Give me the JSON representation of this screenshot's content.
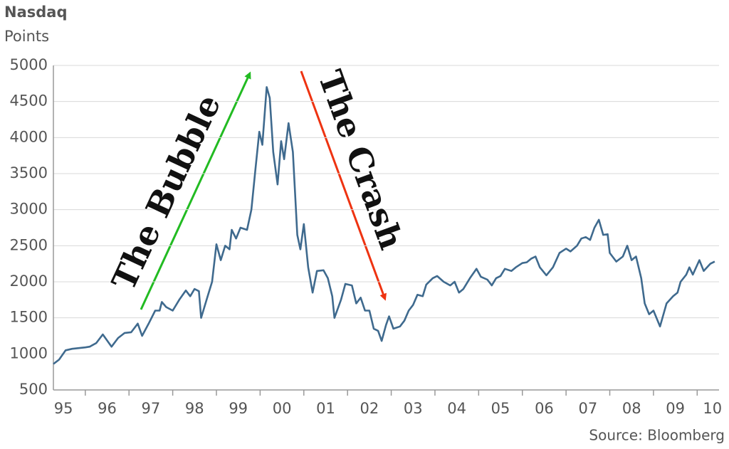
{
  "chart_data": {
    "type": "line",
    "title": "Nasdaq",
    "y_label": "Points",
    "source": "Source: Bloomberg",
    "annotations": [
      "The Bubble",
      "The Crash"
    ],
    "color": "#3f6a8e",
    "grid": true,
    "xlim": [
      1995.27,
      2010.5
    ],
    "ylim": [
      500,
      5000
    ],
    "yticks": [
      500,
      1000,
      1500,
      2000,
      2500,
      3000,
      3500,
      4000,
      4500,
      5000
    ],
    "xticks": [
      {
        "value": 1995.5,
        "label": "95"
      },
      {
        "value": 1996.5,
        "label": "96"
      },
      {
        "value": 1997.5,
        "label": "97"
      },
      {
        "value": 1998.5,
        "label": "98"
      },
      {
        "value": 1999.5,
        "label": "99"
      },
      {
        "value": 2000.5,
        "label": "00"
      },
      {
        "value": 2001.5,
        "label": "01"
      },
      {
        "value": 2002.5,
        "label": "02"
      },
      {
        "value": 2003.5,
        "label": "03"
      },
      {
        "value": 2004.5,
        "label": "04"
      },
      {
        "value": 2005.5,
        "label": "05"
      },
      {
        "value": 2006.5,
        "label": "06"
      },
      {
        "value": 2007.5,
        "label": "07"
      },
      {
        "value": 2008.5,
        "label": "08"
      },
      {
        "value": 2009.5,
        "label": "09"
      },
      {
        "value": 2010.35,
        "label": "10"
      }
    ],
    "x": [
      1995.27,
      1995.4,
      1995.55,
      1995.7,
      1995.85,
      1996.0,
      1996.1,
      1996.25,
      1996.4,
      1996.6,
      1996.75,
      1996.9,
      1997.05,
      1997.2,
      1997.3,
      1997.45,
      1997.6,
      1997.7,
      1997.75,
      1997.85,
      1998.0,
      1998.15,
      1998.3,
      1998.4,
      1998.5,
      1998.6,
      1998.65,
      1998.8,
      1998.9,
      1999.0,
      1999.1,
      1999.2,
      1999.3,
      1999.35,
      1999.45,
      1999.55,
      1999.7,
      1999.8,
      1999.9,
      1999.98,
      2000.05,
      2000.15,
      2000.22,
      2000.3,
      2000.4,
      2000.48,
      2000.55,
      2000.65,
      2000.75,
      2000.85,
      2000.92,
      2001.0,
      2001.1,
      2001.2,
      2001.3,
      2001.45,
      2001.55,
      2001.65,
      2001.7,
      2001.85,
      2001.95,
      2002.1,
      2002.2,
      2002.3,
      2002.4,
      2002.5,
      2002.6,
      2002.7,
      2002.78,
      2002.88,
      2002.95,
      2003.05,
      2003.2,
      2003.3,
      2003.4,
      2003.5,
      2003.6,
      2003.72,
      2003.8,
      2003.95,
      2004.05,
      2004.2,
      2004.35,
      2004.45,
      2004.55,
      2004.65,
      2004.8,
      2004.95,
      2005.05,
      2005.2,
      2005.3,
      2005.4,
      2005.5,
      2005.6,
      2005.75,
      2005.85,
      2006.0,
      2006.1,
      2006.2,
      2006.3,
      2006.4,
      2006.55,
      2006.7,
      2006.85,
      2007.0,
      2007.1,
      2007.25,
      2007.35,
      2007.45,
      2007.55,
      2007.65,
      2007.75,
      2007.85,
      2007.95,
      2008.0,
      2008.15,
      2008.3,
      2008.4,
      2008.5,
      2008.6,
      2008.72,
      2008.8,
      2008.9,
      2009.0,
      2009.15,
      2009.3,
      2009.45,
      2009.55,
      2009.62,
      2009.75,
      2009.82,
      2009.9,
      2010.05,
      2010.15,
      2010.3,
      2010.4
    ],
    "values": [
      860,
      920,
      1050,
      1070,
      1080,
      1090,
      1100,
      1150,
      1270,
      1100,
      1220,
      1290,
      1300,
      1420,
      1250,
      1420,
      1600,
      1600,
      1720,
      1650,
      1600,
      1750,
      1880,
      1800,
      1900,
      1870,
      1500,
      1800,
      2000,
      2520,
      2300,
      2500,
      2450,
      2720,
      2600,
      2750,
      2720,
      3000,
      3600,
      4080,
      3900,
      4700,
      4550,
      3800,
      3350,
      3950,
      3700,
      4200,
      3800,
      2650,
      2450,
      2800,
      2200,
      1850,
      2150,
      2160,
      2050,
      1800,
      1500,
      1750,
      1970,
      1950,
      1700,
      1780,
      1600,
      1600,
      1350,
      1320,
      1180,
      1400,
      1520,
      1350,
      1380,
      1460,
      1600,
      1680,
      1820,
      1800,
      1960,
      2050,
      2080,
      2000,
      1950,
      2000,
      1850,
      1900,
      2050,
      2180,
      2070,
      2030,
      1950,
      2050,
      2080,
      2180,
      2150,
      2200,
      2260,
      2270,
      2320,
      2350,
      2200,
      2090,
      2200,
      2400,
      2460,
      2420,
      2500,
      2600,
      2620,
      2580,
      2750,
      2860,
      2650,
      2660,
      2400,
      2280,
      2350,
      2500,
      2300,
      2350,
      2050,
      1700,
      1550,
      1600,
      1380,
      1700,
      1800,
      1850,
      2000,
      2100,
      2200,
      2100,
      2300,
      2150,
      2250,
      2280
    ]
  }
}
